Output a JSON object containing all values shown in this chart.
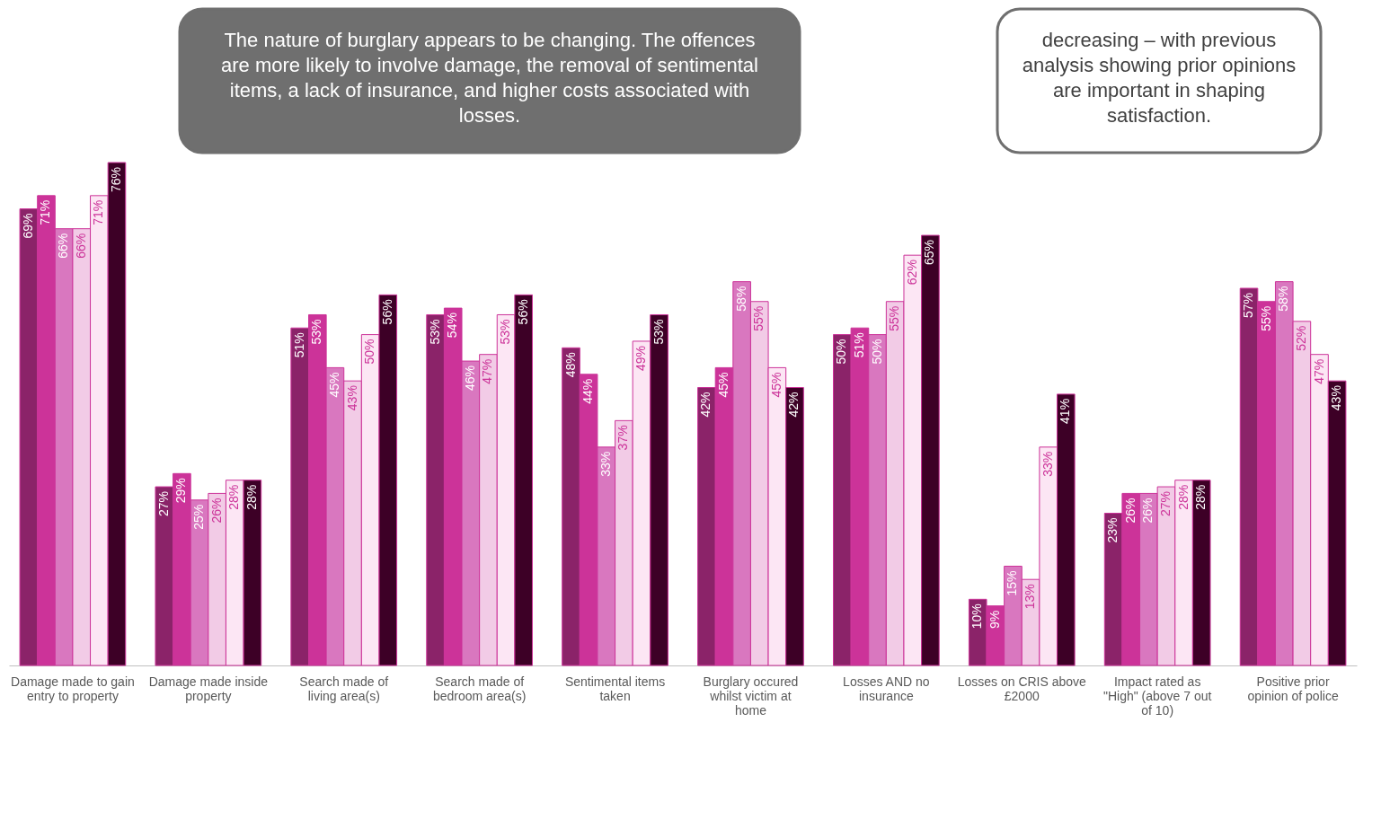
{
  "chart_data": {
    "type": "bar",
    "categories": [
      "Damage made to gain entry to property",
      "Damage made inside property",
      "Search made of living area(s)",
      "Search made of bedroom area(s)",
      "Sentimental items taken",
      "Burglary occured whilst victim at home",
      "Losses AND no insurance",
      "Losses on CRIS above £2000",
      "Impact rated as \"High\" (above 7 out of 10)",
      "Positive prior opinion of police"
    ],
    "series": [
      {
        "color": "#8b2369",
        "values": [
          69,
          27,
          51,
          53,
          48,
          42,
          50,
          10,
          23,
          57
        ],
        "value_labels": [
          "69%",
          "27%",
          "51%",
          "53%",
          "48%",
          "42%",
          "50%",
          "10%",
          "23%",
          "57%"
        ]
      },
      {
        "color": "#cc3399",
        "values": [
          71,
          29,
          53,
          54,
          44,
          45,
          51,
          9,
          26,
          55
        ],
        "value_labels": [
          "71%",
          "29%",
          "53%",
          "54%",
          "44%",
          "45%",
          "51%",
          "9%",
          "26%",
          "55%"
        ]
      },
      {
        "color": "#d977bf",
        "values": [
          66,
          25,
          45,
          46,
          33,
          58,
          50,
          15,
          26,
          58
        ],
        "value_labels": [
          "66%",
          "25%",
          "45%",
          "46%",
          "33%",
          "58%",
          "50%",
          "15%",
          "26%",
          "58%"
        ]
      },
      {
        "color": "#f2cbe6",
        "values": [
          66,
          26,
          43,
          47,
          37,
          55,
          55,
          13,
          27,
          52
        ],
        "value_labels": [
          "66%",
          "26%",
          "43%",
          "47%",
          "37%",
          "55%",
          "55%",
          "13%",
          "27%",
          "52%"
        ]
      },
      {
        "color": "#fce6f4",
        "values": [
          71,
          28,
          50,
          53,
          49,
          45,
          62,
          33,
          28,
          47
        ],
        "value_labels": [
          "71%",
          "28%",
          "50%",
          "53%",
          "49%",
          "45%",
          "62%",
          "33%",
          "28%",
          "47%"
        ]
      },
      {
        "color": "#3d0026",
        "values": [
          76,
          28,
          56,
          56,
          53,
          42,
          65,
          41,
          28,
          43
        ],
        "value_labels": [
          "76%",
          "28%",
          "56%",
          "56%",
          "53%",
          "42%",
          "65%",
          "41%",
          "28%",
          "43%"
        ]
      }
    ],
    "annotations": [
      "The nature of burglary appears to be changing. The offences are more likely to involve damage, the removal of sentimental items, a lack of insurance, and higher costs associated with losses.",
      "decreasing – with previous analysis showing prior opinions are important in shaping satisfaction."
    ],
    "grid": false
  }
}
